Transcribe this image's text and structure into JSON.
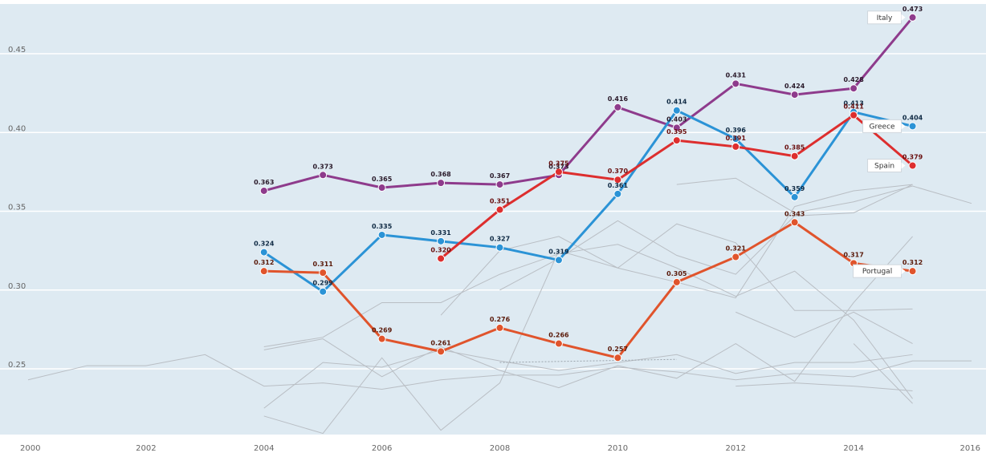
{
  "chart_data": {
    "type": "line",
    "title": "",
    "xlabel": "",
    "ylabel": "",
    "xlim": [
      2000,
      2016
    ],
    "ylim": [
      0.2,
      0.5
    ],
    "x_ticks": [
      "2000",
      "2002",
      "2004",
      "2006",
      "2008",
      "2010",
      "2012",
      "2014",
      "2016"
    ],
    "y_ticks": [
      "0.25",
      "0.30",
      "0.35",
      "0.40",
      "0.45"
    ],
    "grid": "horizontal",
    "colors": {
      "background": "#deeaf2",
      "Italy": "#8e3b8c",
      "Greece": "#2b93d6",
      "Spain": "#dd2e2e",
      "Portugal": "#e0542c",
      "context": "#b9bec4"
    },
    "series": [
      {
        "name": "Italy",
        "color": "#8e3b8c",
        "x": [
          2004,
          2005,
          2006,
          2007,
          2008,
          2009,
          2010,
          2011,
          2012,
          2013,
          2014,
          2015
        ],
        "values": [
          0.363,
          0.373,
          0.365,
          0.368,
          0.367,
          0.373,
          0.416,
          0.403,
          0.431,
          0.424,
          0.428,
          0.473
        ],
        "labels": [
          "0.363",
          "0.373",
          "0.365",
          "0.368",
          "0.367",
          "0.373",
          "0.416",
          "0.403",
          "0.431",
          "0.424",
          "0.428",
          "0.473"
        ]
      },
      {
        "name": "Greece",
        "color": "#2b93d6",
        "x": [
          2004,
          2005,
          2006,
          2007,
          2008,
          2009,
          2010,
          2011,
          2012,
          2013,
          2014,
          2015
        ],
        "values": [
          0.324,
          0.299,
          0.335,
          0.331,
          0.327,
          0.319,
          0.361,
          0.414,
          0.396,
          0.359,
          0.413,
          0.404
        ],
        "labels": [
          "0.324",
          "0.299",
          "0.335",
          "0.331",
          "0.327",
          "0.319",
          "0.361",
          "0.414",
          "0.396",
          "0.359",
          "0.413",
          "0.404"
        ]
      },
      {
        "name": "Spain",
        "color": "#dd2e2e",
        "x": [
          2007,
          2008,
          2009,
          2010,
          2011,
          2012,
          2013,
          2014,
          2015
        ],
        "values": [
          0.32,
          0.351,
          0.375,
          0.37,
          0.395,
          0.391,
          0.385,
          0.411,
          0.379
        ],
        "labels": [
          "0.320",
          "0.351",
          "0.375",
          "0.370",
          "0.395",
          "0.391",
          "0.385",
          "0.411",
          "0.379"
        ]
      },
      {
        "name": "Portugal",
        "color": "#e0542c",
        "x": [
          2004,
          2005,
          2006,
          2007,
          2008,
          2009,
          2010,
          2011,
          2012,
          2013,
          2014,
          2015
        ],
        "values": [
          0.312,
          0.311,
          0.269,
          0.261,
          0.276,
          0.266,
          0.257,
          0.305,
          0.321,
          0.343,
          0.317,
          0.312
        ],
        "labels": [
          "0.312",
          "0.311",
          "0.269",
          "0.261",
          "0.276",
          "0.266",
          "0.257",
          "0.305",
          "0.321",
          "0.343",
          "0.317",
          "0.312"
        ]
      }
    ],
    "context_series": [
      {
        "x": [
          2000,
          2001,
          2002,
          2003,
          2004,
          2005,
          2006,
          2007,
          2008,
          2009,
          2010,
          2011,
          2012,
          2013,
          2014,
          2015,
          2016
        ],
        "values": [
          0.243,
          0.252,
          0.252,
          0.259,
          0.239,
          0.241,
          0.237,
          0.243,
          0.246,
          0.246,
          0.251,
          0.248,
          0.243,
          0.247,
          0.245,
          0.255,
          0.255
        ]
      },
      {
        "x": [
          2004,
          2005,
          2006,
          2007,
          2008,
          2009,
          2010,
          2011,
          2012,
          2013,
          2014,
          2015
        ],
        "values": [
          0.264,
          0.27,
          0.292,
          0.292,
          0.31,
          0.323,
          0.329,
          0.314,
          0.296,
          0.312,
          0.281,
          0.231
        ]
      },
      {
        "x": [
          2004,
          2005,
          2006,
          2007,
          2008,
          2009,
          2010,
          2011,
          2012,
          2013,
          2014,
          2015
        ],
        "values": [
          0.262,
          0.269,
          0.245,
          0.264,
          0.249,
          0.238,
          0.252,
          0.244,
          0.266,
          0.242,
          0.292,
          0.334
        ]
      },
      {
        "x": [
          2004,
          2005,
          2006,
          2007,
          2008,
          2009,
          2010,
          2011,
          2012,
          2013,
          2014,
          2015
        ],
        "values": [
          0.225,
          0.254,
          0.251,
          0.262,
          0.255,
          0.249,
          0.254,
          0.259,
          0.247,
          0.254,
          0.254,
          0.259
        ]
      },
      {
        "x": [
          2004,
          2005,
          2006,
          2007,
          2008,
          2009,
          2010,
          2011,
          2012,
          2013,
          2014,
          2015
        ],
        "values": [
          0.22,
          0.209,
          0.257,
          0.211,
          0.241,
          0.325,
          0.314,
          0.342,
          0.33,
          0.287,
          0.287,
          0.288
        ]
      },
      {
        "x": [
          2007,
          2008,
          2009,
          2010,
          2011,
          2012,
          2013,
          2014,
          2015
        ],
        "values": [
          0.284,
          0.325,
          0.334,
          0.314,
          0.305,
          0.295,
          0.353,
          0.363,
          0.367
        ]
      },
      {
        "x": [
          2008,
          2009,
          2010,
          2011,
          2012,
          2013,
          2014,
          2015
        ],
        "values": [
          0.3,
          0.32,
          0.344,
          0.322,
          0.31,
          0.347,
          0.349,
          0.367
        ]
      },
      {
        "x": [
          2011,
          2012,
          2013,
          2014,
          2015,
          2016
        ],
        "values": [
          0.367,
          0.371,
          0.349,
          0.356,
          0.366,
          0.355
        ]
      },
      {
        "x": [
          2012,
          2013,
          2014,
          2015
        ],
        "values": [
          0.286,
          0.27,
          0.286,
          0.266
        ]
      },
      {
        "x": [
          2012,
          2013,
          2014,
          2015
        ],
        "values": [
          0.239,
          0.241,
          0.239,
          0.236
        ]
      },
      {
        "x": [
          2014,
          2015
        ],
        "values": [
          0.266,
          0.228
        ]
      }
    ],
    "context_dotted": {
      "x": [
        2008,
        2011
      ],
      "values": [
        0.254,
        0.256
      ]
    },
    "legend": [
      {
        "series": "Italy",
        "label": "Italy",
        "placement": "left-of-last-point"
      },
      {
        "series": "Greece",
        "label": "Greece",
        "placement": "left-of-last-point"
      },
      {
        "series": "Spain",
        "label": "Spain",
        "placement": "left-of-last-point"
      },
      {
        "series": "Portugal",
        "label": "Portugal",
        "placement": "left-of-last-point"
      }
    ]
  }
}
